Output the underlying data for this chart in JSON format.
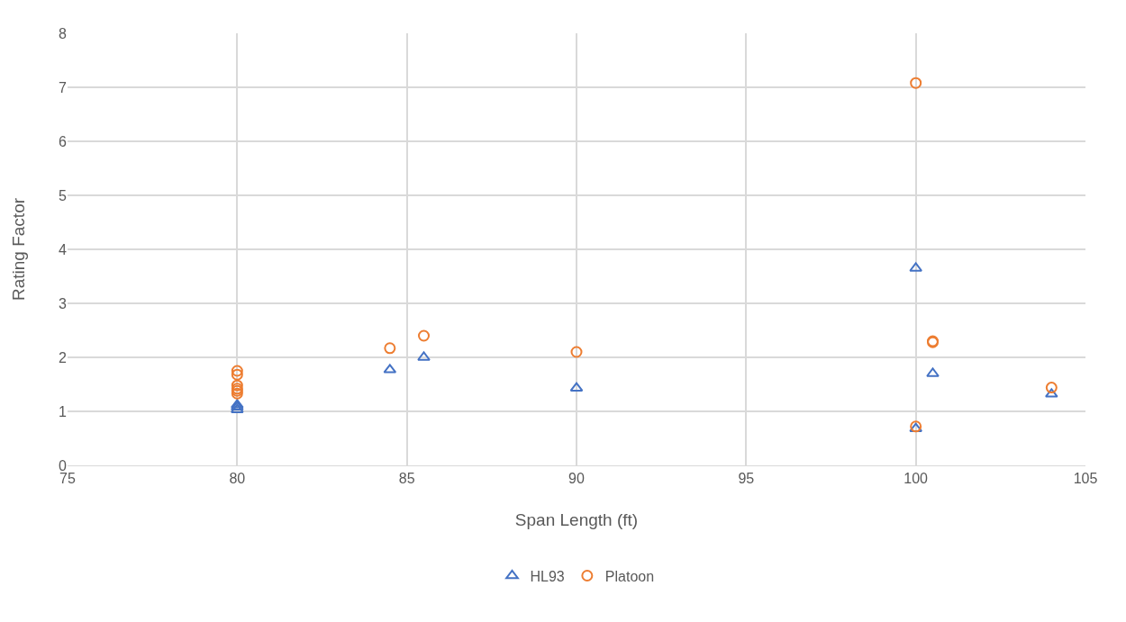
{
  "chart_data": {
    "type": "scatter",
    "xlabel": "Span Length (ft)",
    "ylabel": "Rating Factor",
    "xlim": [
      75,
      105
    ],
    "xticks": [
      75,
      80,
      85,
      90,
      95,
      100,
      105
    ],
    "ylim": [
      0,
      8
    ],
    "yticks": [
      0,
      1,
      2,
      3,
      4,
      5,
      6,
      7,
      8
    ],
    "grid": true,
    "legend": "bottom",
    "series": [
      {
        "name": "HL93",
        "color": "#4472c4",
        "marker": "triangle",
        "x": [
          80,
          80,
          80,
          84.5,
          85.5,
          90,
          100,
          100,
          100.5,
          104
        ],
        "values": [
          1.03,
          1.08,
          1.12,
          1.77,
          2.0,
          1.43,
          3.65,
          0.68,
          1.7,
          1.32
        ]
      },
      {
        "name": "Platoon",
        "color": "#ed7d31",
        "marker": "circle",
        "x": [
          80,
          80,
          80,
          80,
          80,
          80,
          84.5,
          85.5,
          90,
          100,
          100,
          100.5,
          100.5,
          104
        ],
        "values": [
          1.75,
          1.68,
          1.48,
          1.42,
          1.38,
          1.33,
          2.17,
          2.4,
          2.1,
          7.08,
          0.72,
          2.28,
          2.3,
          1.44
        ]
      }
    ]
  }
}
